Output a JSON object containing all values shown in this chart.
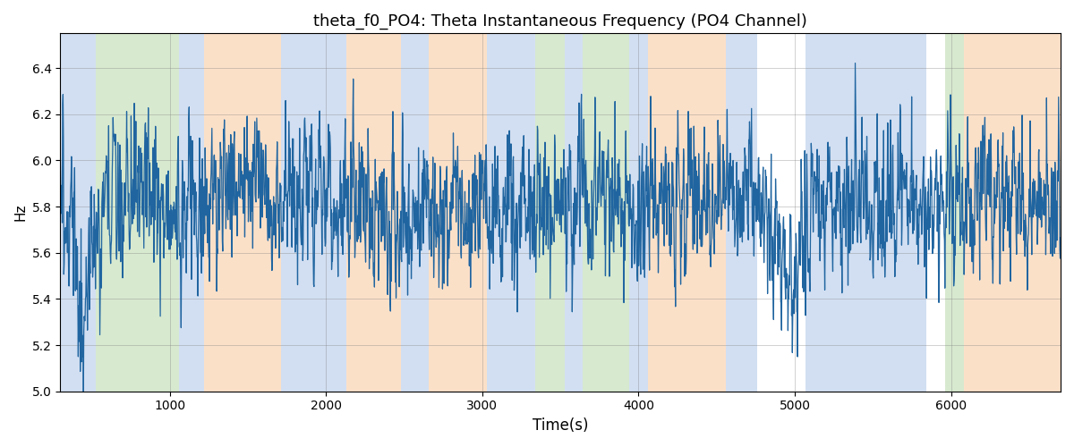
{
  "title": "theta_f0_PO4: Theta Instantaneous Frequency (PO4 Channel)",
  "xlabel": "Time(s)",
  "ylabel": "Hz",
  "ylim": [
    5.0,
    6.55
  ],
  "xlim": [
    300,
    6700
  ],
  "yticks": [
    5.0,
    5.2,
    5.4,
    5.6,
    5.8,
    6.0,
    6.2,
    6.4
  ],
  "xticks": [
    1000,
    2000,
    3000,
    4000,
    5000,
    6000
  ],
  "line_color": "#2065a0",
  "line_width": 0.9,
  "bg_color": "#ffffff",
  "title_fontsize": 13,
  "band_blue": {
    "color": "#aec6e8",
    "alpha": 0.55
  },
  "band_green": {
    "color": "#b6d7a8",
    "alpha": 0.55
  },
  "band_orange": {
    "color": "#f9c89b",
    "alpha": 0.55
  },
  "bands": [
    {
      "start": 300,
      "end": 530,
      "type": "blue"
    },
    {
      "start": 530,
      "end": 1060,
      "type": "green"
    },
    {
      "start": 1060,
      "end": 1220,
      "type": "blue"
    },
    {
      "start": 1220,
      "end": 1710,
      "type": "orange"
    },
    {
      "start": 1710,
      "end": 2130,
      "type": "blue"
    },
    {
      "start": 2130,
      "end": 2480,
      "type": "orange"
    },
    {
      "start": 2480,
      "end": 2660,
      "type": "blue"
    },
    {
      "start": 2660,
      "end": 3030,
      "type": "orange"
    },
    {
      "start": 3030,
      "end": 3340,
      "type": "blue"
    },
    {
      "start": 3340,
      "end": 3530,
      "type": "green"
    },
    {
      "start": 3530,
      "end": 3640,
      "type": "blue"
    },
    {
      "start": 3640,
      "end": 3940,
      "type": "green"
    },
    {
      "start": 3940,
      "end": 4060,
      "type": "blue"
    },
    {
      "start": 4060,
      "end": 4560,
      "type": "orange"
    },
    {
      "start": 4560,
      "end": 4760,
      "type": "blue"
    },
    {
      "start": 4760,
      "end": 5070,
      "type": "none"
    },
    {
      "start": 5070,
      "end": 5840,
      "type": "blue"
    },
    {
      "start": 5840,
      "end": 5960,
      "type": "none"
    },
    {
      "start": 5960,
      "end": 6080,
      "type": "green"
    },
    {
      "start": 6080,
      "end": 6700,
      "type": "orange"
    }
  ],
  "seed": 2023,
  "n_points": 2500,
  "t_start": 300,
  "t_end": 6700,
  "base_freq": 5.82,
  "noise_std": 0.155,
  "ar_coeff": 0.45
}
